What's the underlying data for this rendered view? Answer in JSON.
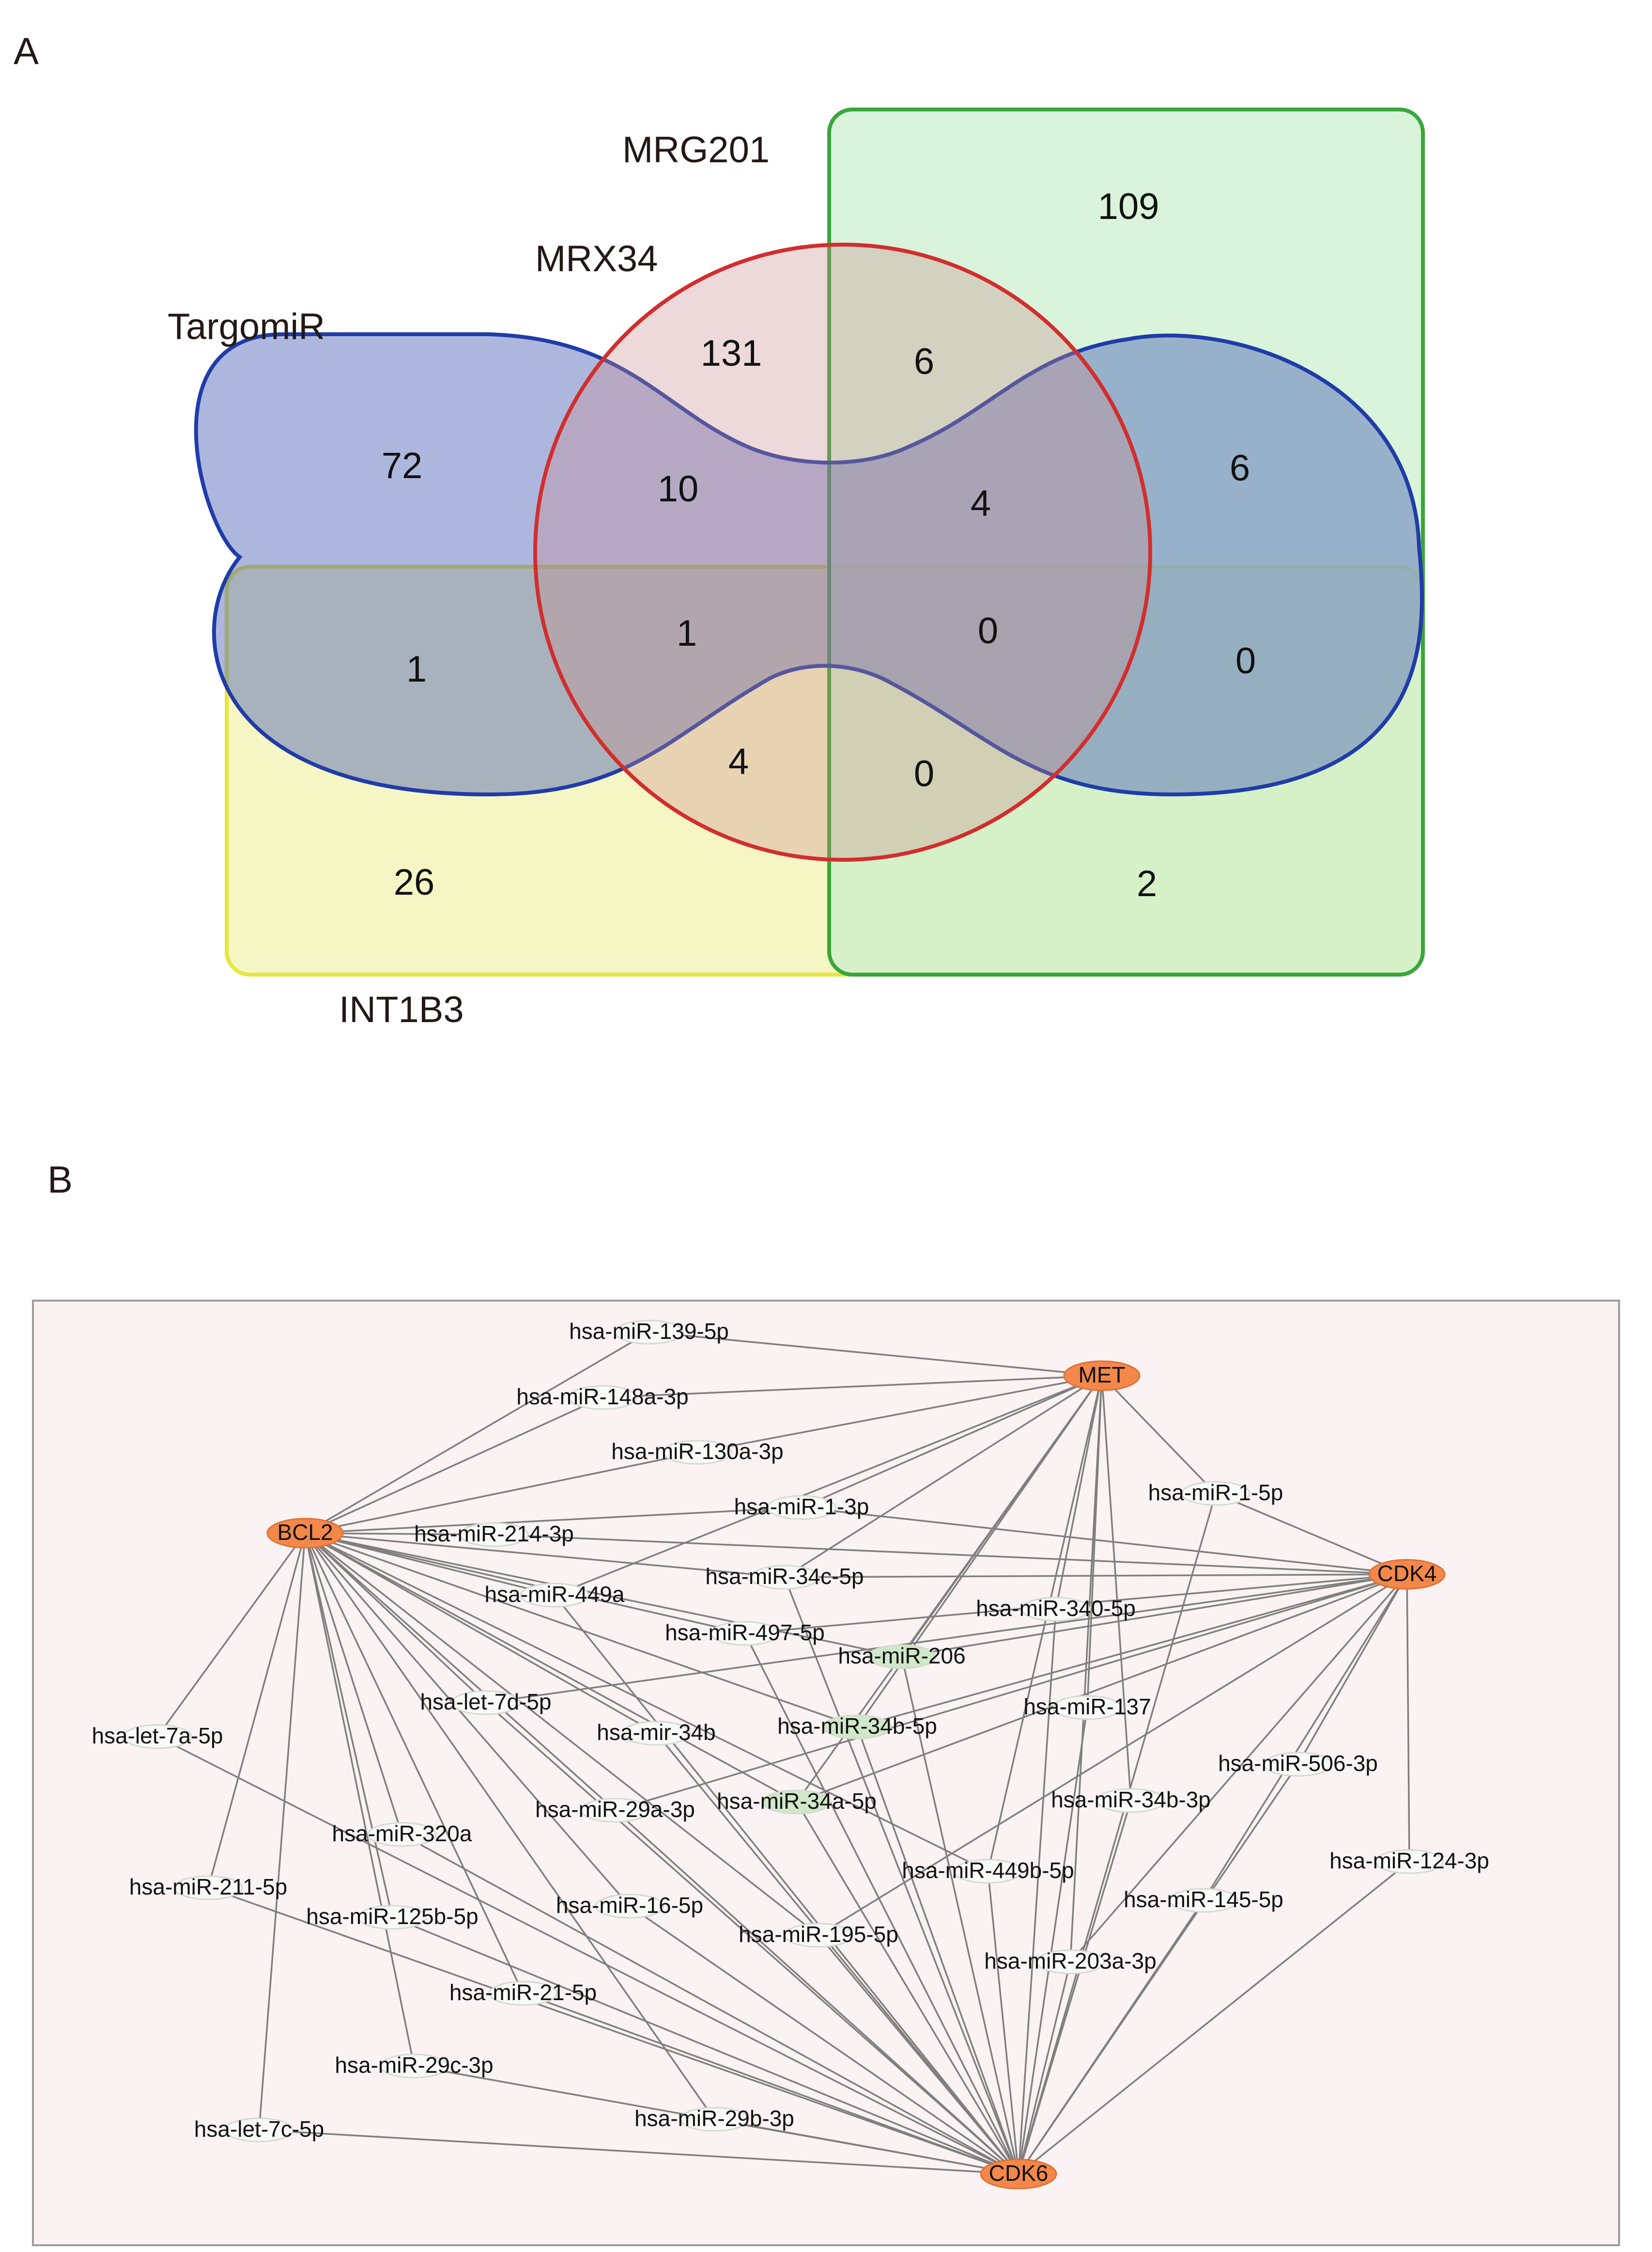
{
  "panels": {
    "a_label": "A",
    "b_label": "B"
  },
  "colors": {
    "targomir_fill": "#4a5fb5",
    "targomir_stroke": "#1f3ca8",
    "mrx34_stroke": "#d12e2e",
    "mrg201_fill": "#c9efcb",
    "mrg201_stroke": "#3aa63a",
    "int1b3_fill": "#f3f3b0",
    "int1b3_stroke": "#e6e63f",
    "network_bg": "#fbf3f3",
    "network_border": "#9c9c9c",
    "gene_node": "#f3884a",
    "mirna_node": "#f8faf7",
    "highlight_node": "#cfe8c7"
  },
  "venn": {
    "sets": {
      "mrg201": "MRG201",
      "mrx34": "MRX34",
      "targomir": "TargomiR",
      "int1b3": "INT1B3"
    },
    "counts": {
      "mrg_only": "109",
      "mrx_only": "131",
      "mrx_mrg": "6",
      "targ_left_only": "72",
      "targ_mrx": "10",
      "targ_mrx_mrg": "4",
      "targ_mrg": "6",
      "targ_int": "1",
      "targ_mrx_int": "1",
      "all_four": "0",
      "targ_mrg_int": "0",
      "mrx_int": "4",
      "mrx_mrg_int": "0",
      "int_only": "26",
      "mrg_int": "2"
    }
  },
  "network": {
    "nodes": [
      {
        "id": "MET",
        "label": "MET",
        "type": "gene"
      },
      {
        "id": "BCL2",
        "label": "BCL2",
        "type": "gene"
      },
      {
        "id": "CDK4",
        "label": "CDK4",
        "type": "gene"
      },
      {
        "id": "CDK6",
        "label": "CDK6",
        "type": "gene"
      },
      {
        "id": "m139",
        "label": "hsa-miR-139-5p",
        "type": "mirna"
      },
      {
        "id": "m148a",
        "label": "hsa-miR-148a-3p",
        "type": "mirna"
      },
      {
        "id": "m130a",
        "label": "hsa-miR-130a-3p",
        "type": "mirna"
      },
      {
        "id": "m1_3p",
        "label": "hsa-miR-1-3p",
        "type": "mirna"
      },
      {
        "id": "m1_5p",
        "label": "hsa-miR-1-5p",
        "type": "mirna"
      },
      {
        "id": "m214",
        "label": "hsa-miR-214-3p",
        "type": "mirna"
      },
      {
        "id": "m449a",
        "label": "hsa-miR-449a",
        "type": "mirna"
      },
      {
        "id": "m34c",
        "label": "hsa-miR-34c-5p",
        "type": "mirna"
      },
      {
        "id": "m497",
        "label": "hsa-miR-497-5p",
        "type": "mirna"
      },
      {
        "id": "m340",
        "label": "hsa-miR-340-5p",
        "type": "mirna"
      },
      {
        "id": "m206",
        "label": "hsa-miR-206",
        "type": "highlight"
      },
      {
        "id": "let7d",
        "label": "hsa-let-7d-5p",
        "type": "mirna"
      },
      {
        "id": "m137",
        "label": "hsa-miR-137",
        "type": "mirna"
      },
      {
        "id": "let7a",
        "label": "hsa-let-7a-5p",
        "type": "mirna"
      },
      {
        "id": "mir34b",
        "label": "hsa-mir-34b",
        "type": "mirna"
      },
      {
        "id": "m34b5p",
        "label": "hsa-miR-34b-5p",
        "type": "highlight"
      },
      {
        "id": "m506",
        "label": "hsa-miR-506-3p",
        "type": "mirna"
      },
      {
        "id": "m29a",
        "label": "hsa-miR-29a-3p",
        "type": "mirna"
      },
      {
        "id": "m34a",
        "label": "hsa-miR-34a-5p",
        "type": "highlight"
      },
      {
        "id": "m34b3p",
        "label": "hsa-miR-34b-3p",
        "type": "mirna"
      },
      {
        "id": "m320a",
        "label": "hsa-miR-320a",
        "type": "mirna"
      },
      {
        "id": "m124",
        "label": "hsa-miR-124-3p",
        "type": "mirna"
      },
      {
        "id": "m449b",
        "label": "hsa-miR-449b-5p",
        "type": "mirna"
      },
      {
        "id": "m211",
        "label": "hsa-miR-211-5p",
        "type": "mirna"
      },
      {
        "id": "m16",
        "label": "hsa-miR-16-5p",
        "type": "mirna"
      },
      {
        "id": "m145",
        "label": "hsa-miR-145-5p",
        "type": "mirna"
      },
      {
        "id": "m125b",
        "label": "hsa-miR-125b-5p",
        "type": "mirna"
      },
      {
        "id": "m195",
        "label": "hsa-miR-195-5p",
        "type": "mirna"
      },
      {
        "id": "m203a",
        "label": "hsa-miR-203a-3p",
        "type": "mirna"
      },
      {
        "id": "m21",
        "label": "hsa-miR-21-5p",
        "type": "mirna"
      },
      {
        "id": "m29c",
        "label": "hsa-miR-29c-3p",
        "type": "mirna"
      },
      {
        "id": "m29b",
        "label": "hsa-miR-29b-3p",
        "type": "mirna"
      },
      {
        "id": "let7c",
        "label": "hsa-let-7c-5p",
        "type": "mirna"
      }
    ],
    "edges": [
      [
        "m139",
        "MET"
      ],
      [
        "m139",
        "BCL2"
      ],
      [
        "m148a",
        "MET"
      ],
      [
        "m148a",
        "BCL2"
      ],
      [
        "m130a",
        "MET"
      ],
      [
        "m130a",
        "BCL2"
      ],
      [
        "m1_3p",
        "MET"
      ],
      [
        "m1_3p",
        "BCL2"
      ],
      [
        "m1_3p",
        "CDK4"
      ],
      [
        "m1_5p",
        "MET"
      ],
      [
        "m1_5p",
        "CDK4"
      ],
      [
        "m1_5p",
        "CDK6"
      ],
      [
        "m214",
        "BCL2"
      ],
      [
        "m214",
        "CDK4"
      ],
      [
        "m449a",
        "MET"
      ],
      [
        "m449a",
        "BCL2"
      ],
      [
        "m449a",
        "CDK6"
      ],
      [
        "m34c",
        "MET"
      ],
      [
        "m34c",
        "BCL2"
      ],
      [
        "m34c",
        "CDK4"
      ],
      [
        "m34c",
        "CDK6"
      ],
      [
        "m497",
        "BCL2"
      ],
      [
        "m497",
        "CDK4"
      ],
      [
        "m497",
        "CDK6"
      ],
      [
        "m340",
        "MET"
      ],
      [
        "m340",
        "CDK6"
      ],
      [
        "m206",
        "MET"
      ],
      [
        "m206",
        "BCL2"
      ],
      [
        "m206",
        "CDK4"
      ],
      [
        "m206",
        "CDK6"
      ],
      [
        "let7d",
        "BCL2"
      ],
      [
        "let7d",
        "CDK4"
      ],
      [
        "let7d",
        "CDK6"
      ],
      [
        "m137",
        "MET"
      ],
      [
        "m137",
        "CDK6"
      ],
      [
        "let7a",
        "BCL2"
      ],
      [
        "let7a",
        "CDK6"
      ],
      [
        "mir34b",
        "BCL2"
      ],
      [
        "mir34b",
        "CDK6"
      ],
      [
        "m34b5p",
        "MET"
      ],
      [
        "m34b5p",
        "BCL2"
      ],
      [
        "m34b5p",
        "CDK4"
      ],
      [
        "m34b5p",
        "CDK6"
      ],
      [
        "m506",
        "CDK4"
      ],
      [
        "m506",
        "CDK6"
      ],
      [
        "m29a",
        "BCL2"
      ],
      [
        "m29a",
        "CDK4"
      ],
      [
        "m29a",
        "CDK6"
      ],
      [
        "m34a",
        "MET"
      ],
      [
        "m34a",
        "BCL2"
      ],
      [
        "m34a",
        "CDK4"
      ],
      [
        "m34a",
        "CDK6"
      ],
      [
        "m34b3p",
        "MET"
      ],
      [
        "m34b3p",
        "CDK6"
      ],
      [
        "m320a",
        "BCL2"
      ],
      [
        "m320a",
        "CDK6"
      ],
      [
        "m124",
        "CDK4"
      ],
      [
        "m124",
        "CDK6"
      ],
      [
        "m449b",
        "MET"
      ],
      [
        "m449b",
        "BCL2"
      ],
      [
        "m449b",
        "CDK6"
      ],
      [
        "m211",
        "BCL2"
      ],
      [
        "m211",
        "CDK6"
      ],
      [
        "m16",
        "BCL2"
      ],
      [
        "m16",
        "CDK6"
      ],
      [
        "m145",
        "CDK4"
      ],
      [
        "m145",
        "CDK6"
      ],
      [
        "m125b",
        "BCL2"
      ],
      [
        "m125b",
        "CDK6"
      ],
      [
        "m195",
        "BCL2"
      ],
      [
        "m195",
        "CDK4"
      ],
      [
        "m195",
        "CDK6"
      ],
      [
        "m203a",
        "MET"
      ],
      [
        "m203a",
        "CDK4"
      ],
      [
        "m203a",
        "CDK6"
      ],
      [
        "m21",
        "BCL2"
      ],
      [
        "m21",
        "CDK6"
      ],
      [
        "m29c",
        "BCL2"
      ],
      [
        "m29c",
        "CDK6"
      ],
      [
        "m29b",
        "BCL2"
      ],
      [
        "m29b",
        "CDK6"
      ],
      [
        "let7c",
        "BCL2"
      ],
      [
        "let7c",
        "CDK6"
      ]
    ]
  }
}
